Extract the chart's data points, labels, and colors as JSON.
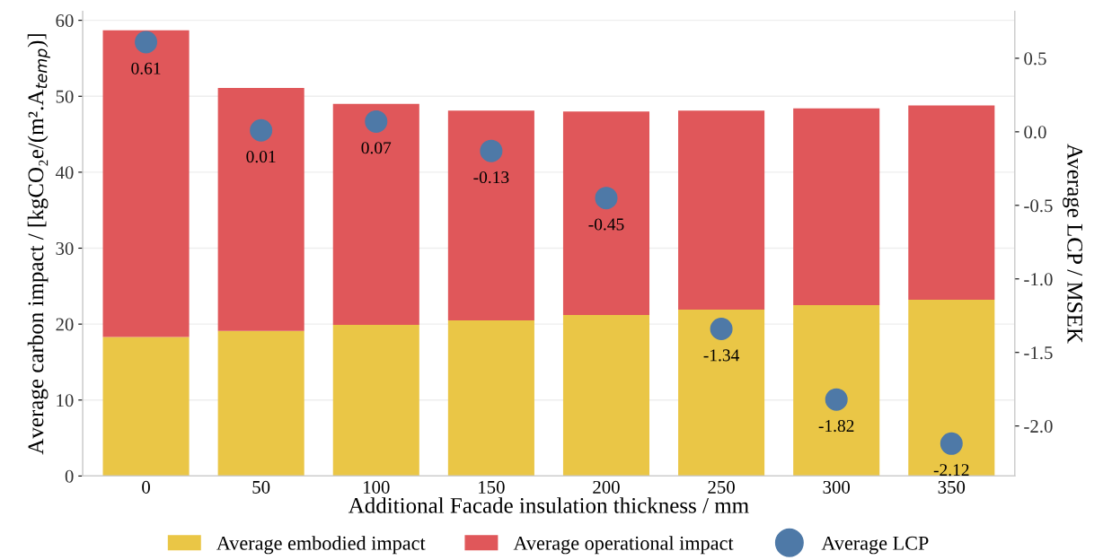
{
  "chart_data": {
    "type": "bar",
    "stacked": true,
    "categories": [
      "0",
      "50",
      "100",
      "150",
      "200",
      "250",
      "300",
      "350"
    ],
    "xlabel": "Additional Facade insulation thickness / mm",
    "ylabel": "Average carbon impact / [kgCO₂e/(m².A$_{temp}$)]",
    "y2label": "Average LCP / MSEK",
    "series": [
      {
        "name": "Average embodied impact",
        "color": "#eac646",
        "values": [
          18.3,
          19.1,
          19.9,
          20.5,
          21.2,
          21.9,
          22.5,
          23.2
        ]
      },
      {
        "name": "Average operational impact",
        "color": "#e0575a",
        "values": [
          40.4,
          32.0,
          29.1,
          27.6,
          26.8,
          26.2,
          25.9,
          25.6
        ]
      },
      {
        "name": "Average LCP",
        "type": "scatter",
        "axis": "y2",
        "color": "#4e79a7",
        "marker": "circle",
        "values": [
          0.61,
          0.01,
          0.07,
          -0.13,
          -0.45,
          -1.34,
          -1.82,
          -2.12
        ],
        "data_labels": true
      }
    ],
    "ylim": [
      0,
      61.2
    ],
    "yticks": [
      0,
      10,
      20,
      30,
      40,
      50,
      60
    ],
    "y2lim": [
      -2.34,
      0.82
    ],
    "y2ticks": [
      {
        "value": -2.0,
        "label": "-2.0"
      },
      {
        "value": -1.5,
        "label": "-1.5"
      },
      {
        "value": -1.0,
        "label": "-1.0"
      },
      {
        "value": -0.5,
        "label": "-0.5"
      },
      {
        "value": 0.0,
        "label": "0.0"
      },
      {
        "value": 0.5,
        "label": "0.5"
      }
    ],
    "grid": "y",
    "legend": "bottom"
  }
}
